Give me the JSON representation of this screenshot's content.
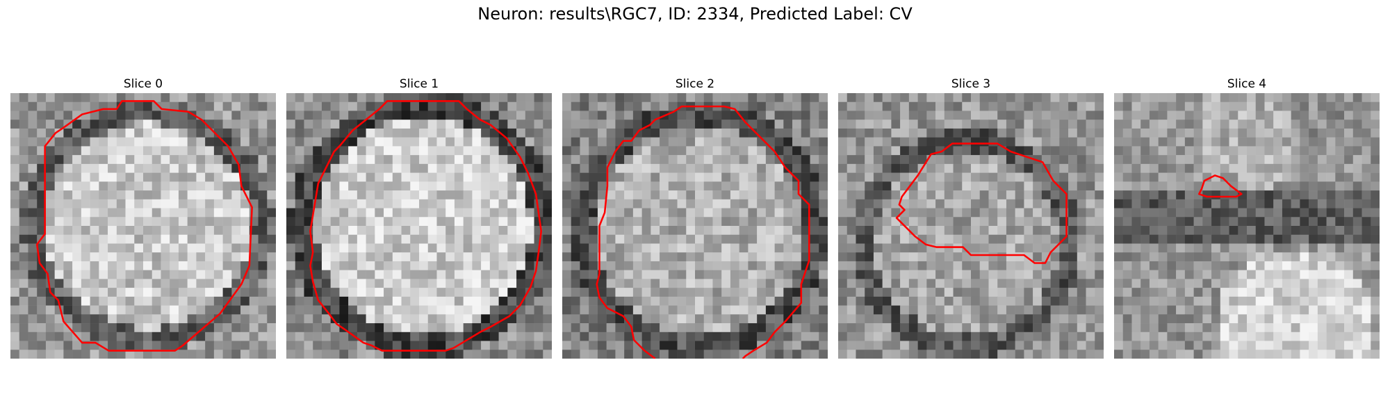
{
  "figure": {
    "title": "Neuron: results\\RGC7, ID: 2334, Predicted Label: CV"
  },
  "contour_color": "#ff0000",
  "panels": [
    {
      "title": "Slice 0",
      "contour": [
        [
          0.54,
          0.03
        ],
        [
          0.57,
          0.06
        ],
        [
          0.67,
          0.07
        ],
        [
          0.72,
          0.1
        ],
        [
          0.82,
          0.2
        ],
        [
          0.86,
          0.27
        ],
        [
          0.87,
          0.35
        ],
        [
          0.91,
          0.43
        ],
        [
          0.9,
          0.65
        ],
        [
          0.87,
          0.72
        ],
        [
          0.79,
          0.83
        ],
        [
          0.65,
          0.95
        ],
        [
          0.62,
          0.97
        ],
        [
          0.37,
          0.97
        ],
        [
          0.32,
          0.94
        ],
        [
          0.27,
          0.94
        ],
        [
          0.2,
          0.86
        ],
        [
          0.18,
          0.78
        ],
        [
          0.15,
          0.75
        ],
        [
          0.14,
          0.68
        ],
        [
          0.11,
          0.64
        ],
        [
          0.1,
          0.57
        ],
        [
          0.13,
          0.53
        ],
        [
          0.13,
          0.2
        ],
        [
          0.17,
          0.15
        ],
        [
          0.2,
          0.13
        ],
        [
          0.27,
          0.08
        ],
        [
          0.35,
          0.06
        ],
        [
          0.4,
          0.06
        ],
        [
          0.42,
          0.03
        ]
      ],
      "closed": true
    },
    {
      "title": "Slice 1",
      "contour": [
        [
          0.38,
          0.03
        ],
        [
          0.65,
          0.03
        ],
        [
          0.68,
          0.06
        ],
        [
          0.73,
          0.1
        ],
        [
          0.77,
          0.12
        ],
        [
          0.83,
          0.17
        ],
        [
          0.88,
          0.24
        ],
        [
          0.91,
          0.3
        ],
        [
          0.94,
          0.38
        ],
        [
          0.96,
          0.52
        ],
        [
          0.95,
          0.6
        ],
        [
          0.94,
          0.67
        ],
        [
          0.92,
          0.73
        ],
        [
          0.88,
          0.8
        ],
        [
          0.84,
          0.84
        ],
        [
          0.77,
          0.88
        ],
        [
          0.73,
          0.9
        ],
        [
          0.63,
          0.96
        ],
        [
          0.6,
          0.97
        ],
        [
          0.36,
          0.97
        ],
        [
          0.32,
          0.95
        ],
        [
          0.29,
          0.94
        ],
        [
          0.22,
          0.89
        ],
        [
          0.19,
          0.87
        ],
        [
          0.16,
          0.83
        ],
        [
          0.12,
          0.78
        ],
        [
          0.1,
          0.71
        ],
        [
          0.09,
          0.65
        ],
        [
          0.1,
          0.6
        ],
        [
          0.09,
          0.52
        ],
        [
          0.11,
          0.4
        ],
        [
          0.12,
          0.34
        ],
        [
          0.15,
          0.28
        ],
        [
          0.18,
          0.22
        ],
        [
          0.2,
          0.2
        ],
        [
          0.25,
          0.14
        ],
        [
          0.3,
          0.1
        ],
        [
          0.35,
          0.06
        ]
      ],
      "closed": true
    },
    {
      "title": "Slice 2",
      "contour": [
        [
          0.35,
          1.0
        ],
        [
          0.31,
          0.97
        ],
        [
          0.27,
          0.93
        ],
        [
          0.26,
          0.88
        ],
        [
          0.23,
          0.84
        ],
        [
          0.17,
          0.81
        ],
        [
          0.14,
          0.77
        ],
        [
          0.13,
          0.72
        ],
        [
          0.14,
          0.68
        ],
        [
          0.14,
          0.5
        ],
        [
          0.16,
          0.45
        ],
        [
          0.17,
          0.35
        ],
        [
          0.17,
          0.28
        ],
        [
          0.2,
          0.22
        ],
        [
          0.23,
          0.18
        ],
        [
          0.26,
          0.18
        ],
        [
          0.29,
          0.14
        ],
        [
          0.33,
          0.12
        ],
        [
          0.35,
          0.1
        ],
        [
          0.42,
          0.07
        ],
        [
          0.45,
          0.05
        ],
        [
          0.61,
          0.05
        ],
        [
          0.65,
          0.06
        ],
        [
          0.69,
          0.11
        ],
        [
          0.75,
          0.17
        ],
        [
          0.8,
          0.22
        ],
        [
          0.84,
          0.28
        ],
        [
          0.89,
          0.33
        ],
        [
          0.89,
          0.38
        ],
        [
          0.93,
          0.42
        ],
        [
          0.93,
          0.63
        ],
        [
          0.9,
          0.72
        ],
        [
          0.9,
          0.79
        ],
        [
          0.84,
          0.86
        ],
        [
          0.8,
          0.9
        ],
        [
          0.77,
          0.94
        ],
        [
          0.72,
          0.97
        ],
        [
          0.69,
          0.99
        ],
        [
          0.68,
          1.0
        ]
      ],
      "closed": false
    },
    {
      "title": "Slice 3",
      "contour": [
        [
          0.43,
          0.19
        ],
        [
          0.6,
          0.19
        ],
        [
          0.65,
          0.22
        ],
        [
          0.77,
          0.26
        ],
        [
          0.81,
          0.33
        ],
        [
          0.86,
          0.38
        ],
        [
          0.86,
          0.54
        ],
        [
          0.8,
          0.6
        ],
        [
          0.78,
          0.64
        ],
        [
          0.74,
          0.64
        ],
        [
          0.7,
          0.61
        ],
        [
          0.5,
          0.61
        ],
        [
          0.47,
          0.58
        ],
        [
          0.37,
          0.58
        ],
        [
          0.33,
          0.57
        ],
        [
          0.29,
          0.54
        ],
        [
          0.24,
          0.49
        ],
        [
          0.22,
          0.47
        ],
        [
          0.25,
          0.44
        ],
        [
          0.23,
          0.42
        ],
        [
          0.24,
          0.39
        ],
        [
          0.3,
          0.31
        ],
        [
          0.35,
          0.23
        ],
        [
          0.39,
          0.22
        ]
      ],
      "closed": true
    },
    {
      "title": "Slice 4",
      "contour": [
        [
          0.34,
          0.33
        ],
        [
          0.38,
          0.31
        ],
        [
          0.41,
          0.32
        ],
        [
          0.44,
          0.35
        ],
        [
          0.48,
          0.38
        ],
        [
          0.46,
          0.39
        ],
        [
          0.35,
          0.39
        ],
        [
          0.32,
          0.38
        ],
        [
          0.33,
          0.36
        ]
      ],
      "closed": true
    }
  ]
}
